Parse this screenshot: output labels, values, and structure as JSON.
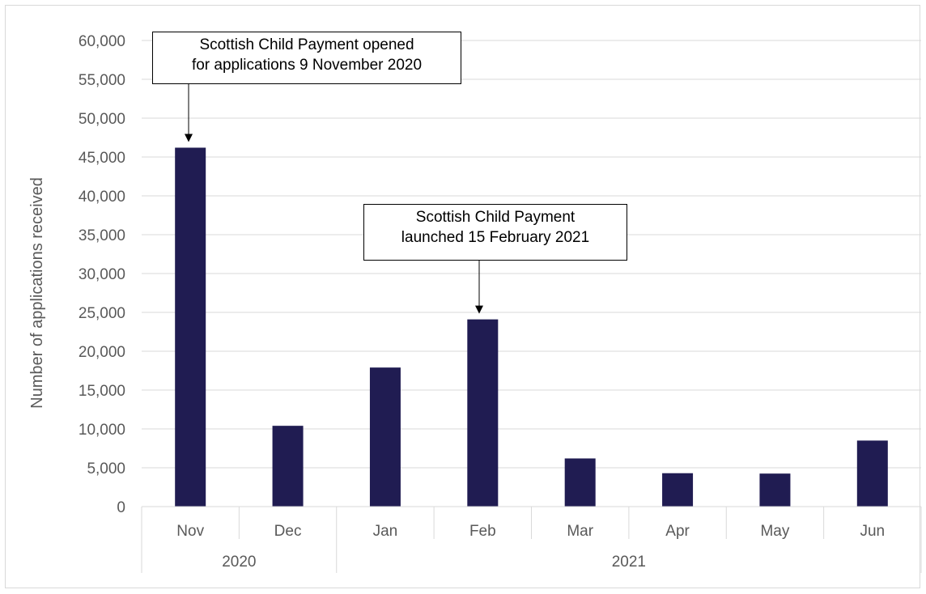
{
  "chart_data": {
    "type": "bar",
    "categories": [
      "Nov",
      "Dec",
      "Jan",
      "Feb",
      "Mar",
      "Apr",
      "May",
      "Jun"
    ],
    "groups": [
      {
        "label": "2020",
        "categories": [
          "Nov",
          "Dec"
        ]
      },
      {
        "label": "2021",
        "categories": [
          "Jan",
          "Feb",
          "Mar",
          "Apr",
          "May",
          "Jun"
        ]
      }
    ],
    "values": [
      46200,
      10400,
      17900,
      24100,
      6200,
      4300,
      4250,
      8500
    ],
    "ylabel": "Number of applications received",
    "xlabel": "",
    "ylim": [
      0,
      60000
    ],
    "ytick_step": 5000,
    "ytick_labels": [
      "0",
      "5,000",
      "10,000",
      "15,000",
      "20,000",
      "25,000",
      "30,000",
      "35,000",
      "40,000",
      "45,000",
      "50,000",
      "55,000",
      "60,000"
    ],
    "grid": true,
    "legend": "none",
    "bar_color": "#201c52",
    "annotations": [
      {
        "text": "Scottish Child Payment opened\nfor applications 9 November 2020",
        "target": "Nov"
      },
      {
        "text": "Scottish Child Payment\nlaunched 15 February 2021",
        "target": "Feb"
      }
    ]
  }
}
